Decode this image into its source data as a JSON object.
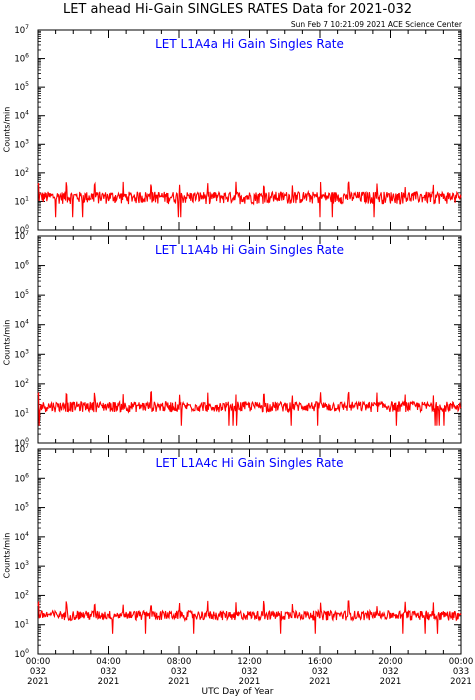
{
  "title": "LET ahead Hi-Gain SINGLES RATES Data for 2021-032",
  "timestamp": "Sun Feb  7 10:21:09 2021 ACE Science Center",
  "xlabel": "UTC Day of Year",
  "colors": {
    "trace": "#ff0000",
    "panel_title": "#0000ff",
    "axes": "#000000"
  },
  "chart_data": [
    {
      "type": "line",
      "title": "LET L1A4a Hi Gain Singles Rate",
      "ylabel": "Counts/min",
      "yscale": "log",
      "ylim": [
        1,
        10000000
      ],
      "xlim": [
        0,
        24
      ],
      "series": [
        {
          "baseline": 14,
          "noise_low": 8,
          "noise_high": 22,
          "spike_period_hours": 1.6,
          "spike_peak": 45,
          "x_unit": "hours",
          "y_unit": "Counts/min"
        }
      ]
    },
    {
      "type": "line",
      "title": "LET L1A4b Hi Gain Singles Rate",
      "ylabel": "Counts/min",
      "yscale": "log",
      "ylim": [
        1,
        10000000
      ],
      "xlim": [
        0,
        24
      ],
      "series": [
        {
          "baseline": 18,
          "noise_low": 11,
          "noise_high": 25,
          "spike_period_hours": 1.6,
          "spike_peak": 50,
          "x_unit": "hours",
          "y_unit": "Counts/min"
        }
      ]
    },
    {
      "type": "line",
      "title": "LET L1A4c Hi Gain Singles Rate",
      "ylabel": "Counts/min",
      "yscale": "log",
      "ylim": [
        1,
        10000000
      ],
      "xlim": [
        0,
        24
      ],
      "series": [
        {
          "baseline": 22,
          "noise_low": 14,
          "noise_high": 30,
          "spike_period_hours": 1.6,
          "spike_peak": 60,
          "x_unit": "hours",
          "y_unit": "Counts/min"
        }
      ]
    }
  ],
  "ytick_labels": [
    "10",
    "10",
    "10",
    "10",
    "10",
    "10",
    "10",
    "10"
  ],
  "ytick_exponents": [
    "0",
    "1",
    "2",
    "3",
    "4",
    "5",
    "6",
    "7"
  ],
  "xticks": [
    {
      "hour": 0,
      "time": "00:00",
      "doy": "032",
      "year": "2021"
    },
    {
      "hour": 4,
      "time": "04:00",
      "doy": "032",
      "year": "2021"
    },
    {
      "hour": 8,
      "time": "08:00",
      "doy": "032",
      "year": "2021"
    },
    {
      "hour": 12,
      "time": "12:00",
      "doy": "032",
      "year": "2021"
    },
    {
      "hour": 16,
      "time": "16:00",
      "doy": "032",
      "year": "2021"
    },
    {
      "hour": 20,
      "time": "20:00",
      "doy": "032",
      "year": "2021"
    },
    {
      "hour": 24,
      "time": "00:00",
      "doy": "033",
      "year": "2021"
    }
  ]
}
